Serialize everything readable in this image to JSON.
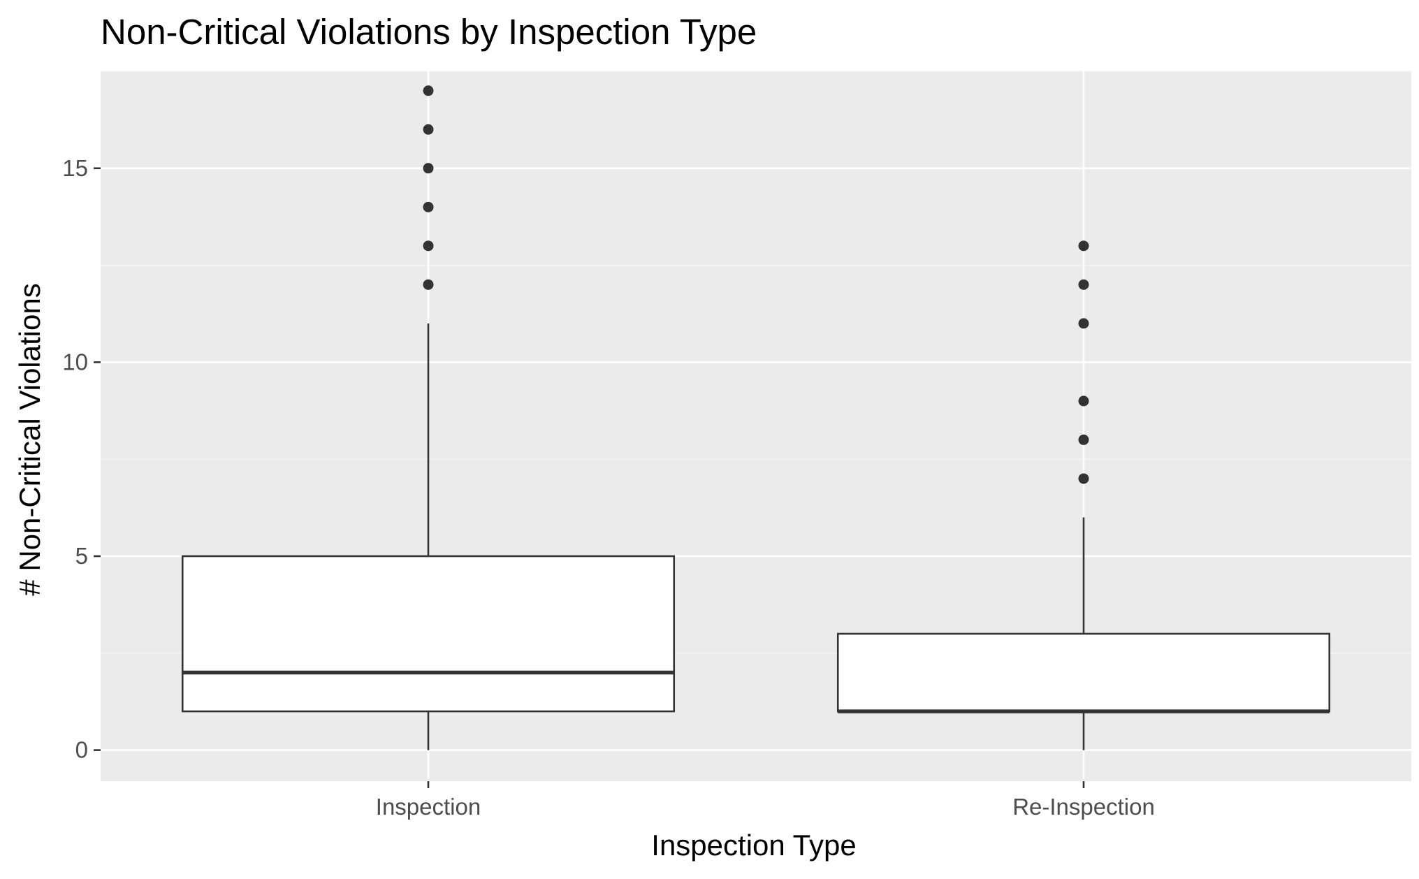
{
  "chart_data": {
    "type": "box",
    "title": "Non-Critical Violations by Inspection Type",
    "xlabel": "Inspection Type",
    "ylabel": "# Non-Critical Violations",
    "categories": [
      "Inspection",
      "Re-Inspection"
    ],
    "ylim": [
      -0.8,
      17.5
    ],
    "yticks": [
      0,
      5,
      10,
      15
    ],
    "ytick_labels": [
      "0",
      "5",
      "10",
      "15"
    ],
    "grid": true,
    "legend": "none",
    "boxes": [
      {
        "category": "Inspection",
        "whisker_low": 0,
        "q1": 1,
        "median": 2,
        "q3": 5,
        "whisker_high": 11,
        "outliers": [
          12,
          13,
          14,
          15,
          16,
          17
        ]
      },
      {
        "category": "Re-Inspection",
        "whisker_low": 0,
        "q1": 1,
        "median": 1,
        "q3": 3,
        "whisker_high": 6,
        "outliers": [
          7,
          8,
          9,
          11,
          12,
          13
        ]
      }
    ],
    "colors": {
      "panel_background": "#ebebeb",
      "grid_major": "#ffffff",
      "grid_minor": "#f5f5f5",
      "box_fill": "#ffffff",
      "box_line": "#333333",
      "outlier": "#333333",
      "tick_mark": "#333333",
      "tick_label": "#4d4d4d"
    }
  }
}
